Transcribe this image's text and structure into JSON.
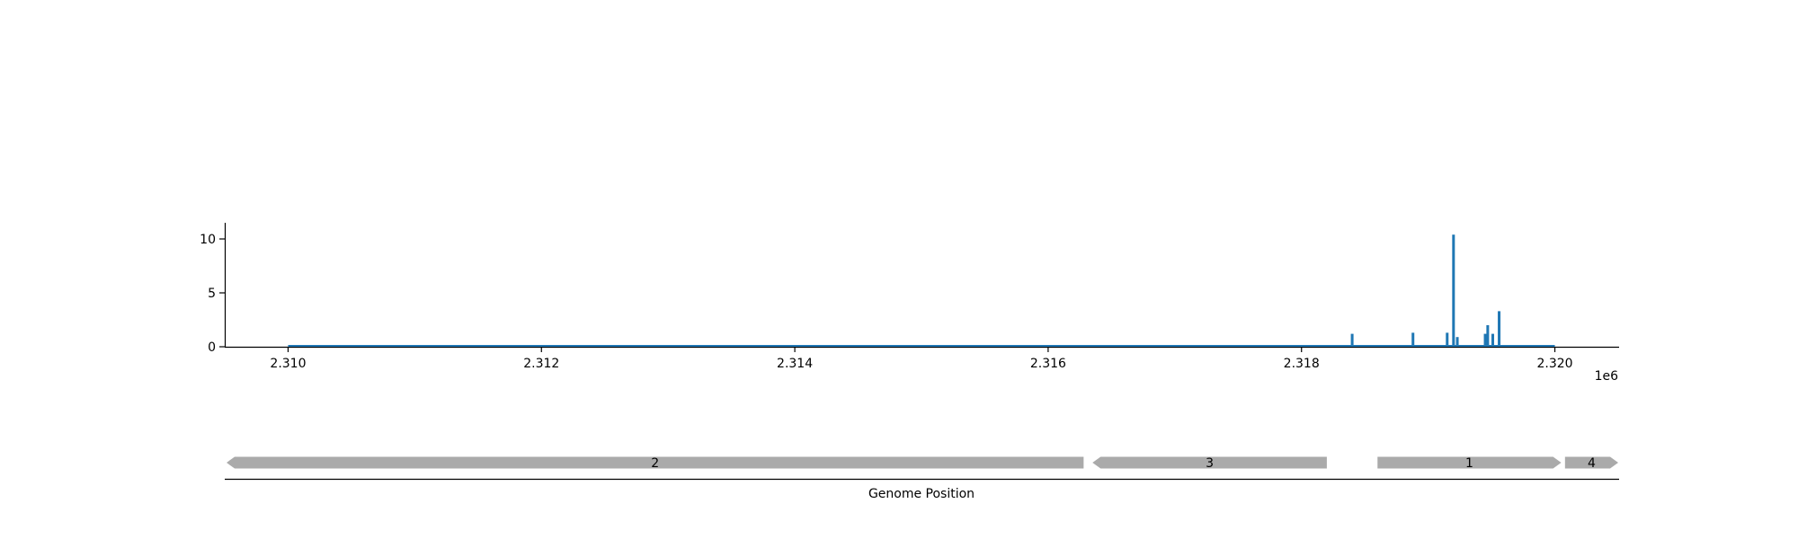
{
  "chart_data": [
    {
      "type": "bar",
      "title": "",
      "xlabel": "",
      "ylabel": "",
      "x_offset_label": "1e6",
      "xlim": [
        2.3095,
        2.3205
      ],
      "ylim": [
        0,
        11.5
      ],
      "x_ticks": [
        2.31,
        2.312,
        2.314,
        2.316,
        2.318,
        2.32
      ],
      "x_tick_labels": [
        "2.310",
        "2.312",
        "2.314",
        "2.316",
        "2.318",
        "2.320"
      ],
      "y_ticks": [
        0,
        5,
        10
      ],
      "y_tick_labels": [
        "0",
        "5",
        "10"
      ],
      "baseline": {
        "x_start": 2.31,
        "x_end": 2.32,
        "y": 0
      },
      "bar_color": "#1f77b4",
      "grid": false,
      "spikes": [
        {
          "x": 2.3184,
          "y": 1.2
        },
        {
          "x": 2.31888,
          "y": 1.3
        },
        {
          "x": 2.31915,
          "y": 1.3
        },
        {
          "x": 2.3192,
          "y": 10.4
        },
        {
          "x": 2.31923,
          "y": 0.9
        },
        {
          "x": 2.31945,
          "y": 1.2
        },
        {
          "x": 2.31947,
          "y": 2.0
        },
        {
          "x": 2.31951,
          "y": 1.2
        },
        {
          "x": 2.31956,
          "y": 3.3
        }
      ]
    },
    {
      "type": "gene-track",
      "xlabel": "Genome Position",
      "feature_color": "#aaaaaa",
      "features": [
        {
          "label": "2",
          "start": 2.3095,
          "end": 2.31628,
          "strand": "-"
        },
        {
          "label": "3",
          "start": 2.31635,
          "end": 2.3182,
          "strand": "-"
        },
        {
          "label": "1",
          "start": 2.3186,
          "end": 2.32005,
          "strand": "+"
        },
        {
          "label": "4",
          "start": 2.32008,
          "end": 2.3205,
          "strand": "+"
        }
      ]
    }
  ]
}
